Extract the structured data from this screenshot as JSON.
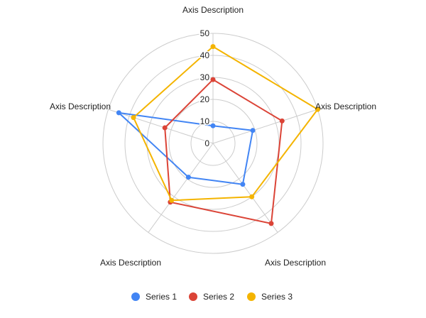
{
  "chart_data": {
    "type": "radar",
    "axes": [
      "Axis Description",
      "Axis Description",
      "Axis Description",
      "Axis Description",
      "Axis Description"
    ],
    "rlim": [
      0,
      50
    ],
    "ticks": [
      0,
      10,
      20,
      30,
      40,
      50
    ],
    "tick_labels": [
      "0",
      "10",
      "20",
      "30",
      "40",
      "50"
    ],
    "grid": true,
    "legend_position": "bottom",
    "series": [
      {
        "name": "Series 1",
        "color": "#4285F4",
        "values": [
          8,
          19,
          23,
          19,
          45
        ]
      },
      {
        "name": "Series 2",
        "color": "#DB4437",
        "values": [
          29,
          33,
          45,
          33,
          23
        ]
      },
      {
        "name": "Series 3",
        "color": "#F4B400",
        "values": [
          44,
          50,
          30,
          32,
          38
        ]
      }
    ]
  }
}
